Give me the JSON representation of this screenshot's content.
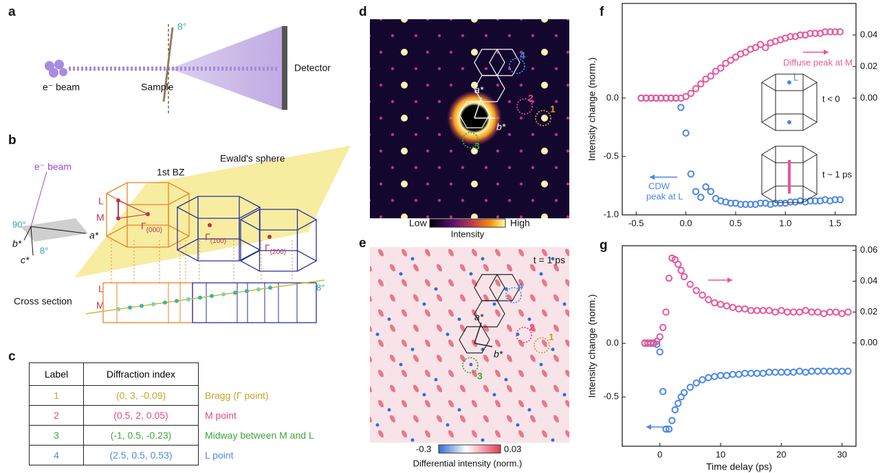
{
  "panel_labels": [
    "a",
    "b",
    "c",
    "d",
    "e",
    "f",
    "g"
  ],
  "a": {
    "beam": "e⁻ beam",
    "sample": "Sample",
    "angle": "8°",
    "detector": "Detector"
  },
  "b": {
    "beam": "e⁻ beam",
    "right_angle": "90°",
    "a_star": "a*",
    "b_star": "b*",
    "c_star": "c*",
    "tilt": "8°",
    "bz": "1st BZ",
    "ewald": "Ewald's sphere",
    "L": "L",
    "M": "M",
    "gammas": [
      {
        "main": "Γ",
        "sub": "(000)"
      },
      {
        "main": "Γ",
        "sub": "(100)"
      },
      {
        "main": "Γ",
        "sub": "(200)"
      }
    ],
    "cross_section": "Cross section",
    "cs_L": "L",
    "cs_M": "M",
    "cs_angle": "8°"
  },
  "c": {
    "header": [
      "Label",
      "Diffraction index"
    ],
    "rows": [
      {
        "label": "1",
        "index": "(0, 3, -0.09)",
        "description": "Bragg (Γ point)",
        "color": "#c9a227"
      },
      {
        "label": "2",
        "index": "(0.5, 2, 0.05)",
        "description": "M point",
        "color": "#e8468a"
      },
      {
        "label": "3",
        "index": "(-1, 0.5, -0.23)",
        "description": "Midway between M and L",
        "color": "#3aa63a"
      },
      {
        "label": "4",
        "index": "(2.5, 0.5, 0.53)",
        "description": "L point",
        "color": "#4d8ae0"
      }
    ]
  },
  "d": {
    "markers": [
      "1",
      "2",
      "3",
      "4"
    ],
    "a_star": "a*",
    "b_star": "b*",
    "colorbar_low": "Low",
    "colorbar_high": "High",
    "colorbar_title": "Intensity"
  },
  "e": {
    "time": "t = 1 ps",
    "markers": [
      "1",
      "2",
      "3",
      "4"
    ],
    "a_star": "a*",
    "b_star": "b*",
    "colorbar_low": "-0.3",
    "colorbar_high": "0.03",
    "colorbar_title": "Differential intensity (norm.)"
  },
  "chart_data": [
    {
      "type": "scatter",
      "ylabel": "Intensity change (norm.)",
      "x": [
        -0.45,
        -0.4,
        -0.35,
        -0.3,
        -0.25,
        -0.2,
        -0.15,
        -0.1,
        -0.05,
        0.0,
        0.05,
        0.1,
        0.15,
        0.2,
        0.25,
        0.3,
        0.35,
        0.4,
        0.45,
        0.5,
        0.55,
        0.6,
        0.65,
        0.7,
        0.75,
        0.8,
        0.85,
        0.9,
        0.95,
        1.0,
        1.05,
        1.1,
        1.15,
        1.2,
        1.25,
        1.3,
        1.35,
        1.4,
        1.45,
        1.5,
        1.55
      ],
      "series": [
        {
          "color": "#4a86e8",
          "axis": "y",
          "values": [
            0,
            0,
            0,
            0,
            0,
            0,
            0,
            0,
            -0.08,
            -0.3,
            -0.65,
            -0.8,
            -0.85,
            -0.76,
            -0.8,
            -0.86,
            -0.88,
            -0.89,
            -0.9,
            -0.9,
            -0.91,
            -0.91,
            -0.91,
            -0.91,
            -0.9,
            -0.9,
            -0.91,
            -0.9,
            -0.9,
            -0.9,
            -0.89,
            -0.89,
            -0.88,
            -0.89,
            -0.88,
            -0.88,
            -0.88,
            -0.87,
            -0.88,
            -0.87,
            -0.87
          ]
        },
        {
          "color": "#e8569a",
          "axis": "y2",
          "values": [
            0,
            0,
            0,
            0,
            0,
            0,
            0,
            0,
            0,
            0.001,
            0.003,
            0.006,
            0.009,
            0.012,
            0.014,
            0.017,
            0.019,
            0.022,
            0.024,
            0.026,
            0.028,
            0.029,
            0.031,
            0.032,
            0.034,
            0.032,
            0.035,
            0.036,
            0.037,
            0.038,
            0.039,
            0.039,
            0.04,
            0.04,
            0.041,
            0.041,
            0.041,
            0.042,
            0.042,
            0.042,
            0.042
          ]
        }
      ],
      "xlim": [
        -0.64,
        1.71
      ],
      "xticks": [
        -0.5,
        {
          "value": 0,
          "label": "0.0"
        },
        0.5,
        {
          "value": 1,
          "label": "1.0"
        },
        1.5
      ],
      "ylim": [
        -1.0,
        0.81
      ],
      "yticks": [
        {
          "value": 0,
          "label": "0.0"
        },
        -0.5,
        {
          "value": -1,
          "label": "-1.0"
        }
      ],
      "y2lim": [
        -0.074,
        0.06
      ],
      "y2ticks": [
        {
          "value": 0,
          "label": "0.00"
        },
        {
          "value": 0.02,
          "label": "0.02"
        },
        {
          "value": 0.04,
          "label": "0.04"
        }
      ],
      "annotations": [
        "Diffuse peak at M",
        "CDW",
        "peak at L",
        "t < 0",
        "t ~ 1 ps",
        "L"
      ]
    },
    {
      "type": "scatter",
      "ylabel": "Intensity change (norm.)",
      "xlabel": "Time delay (ps)",
      "x": [
        -2.5,
        -2,
        -1.5,
        -1,
        -0.5,
        0,
        0.5,
        1,
        1.5,
        2,
        2.5,
        3,
        3.5,
        4,
        5,
        6,
        7,
        8,
        9,
        10,
        11,
        12,
        13,
        14,
        15,
        16,
        17,
        18,
        19,
        20,
        21,
        22,
        23,
        24,
        25,
        26,
        27,
        28,
        29,
        30,
        31
      ],
      "series": [
        {
          "color": "#4a86e8",
          "axis": "y",
          "values": [
            0,
            0,
            0,
            0,
            -0.01,
            -0.08,
            -0.45,
            -0.8,
            -0.8,
            -0.72,
            -0.62,
            -0.56,
            -0.5,
            -0.46,
            -0.41,
            -0.37,
            -0.34,
            -0.32,
            -0.31,
            -0.3,
            -0.3,
            -0.29,
            -0.29,
            -0.28,
            -0.28,
            -0.28,
            -0.28,
            -0.27,
            -0.27,
            -0.27,
            -0.27,
            -0.27,
            -0.26,
            -0.27,
            -0.26,
            -0.26,
            -0.26,
            -0.26,
            -0.26,
            -0.26,
            -0.26
          ]
        },
        {
          "color": "#e8569a",
          "axis": "y2",
          "values": [
            0,
            0,
            0,
            0,
            0.001,
            0.004,
            0.01,
            0.02,
            0.042,
            0.055,
            0.054,
            0.051,
            0.047,
            0.043,
            0.038,
            0.034,
            0.031,
            0.028,
            0.026,
            0.025,
            0.024,
            0.023,
            0.022,
            0.022,
            0.021,
            0.021,
            0.021,
            0.021,
            0.02,
            0.021,
            0.02,
            0.02,
            0.02,
            0.021,
            0.02,
            0.02,
            0.019,
            0.02,
            0.02,
            0.019,
            0.02
          ]
        }
      ],
      "xlim": [
        -6.2,
        32.3
      ],
      "xticks": [
        0,
        10,
        20,
        30
      ],
      "ylim": [
        -0.96,
        0.91
      ],
      "yticks": [
        {
          "value": 0,
          "label": "0.0"
        },
        -0.5
      ],
      "y2lim": [
        -0.067,
        0.063
      ],
      "y2ticks": [
        {
          "value": 0,
          "label": "0.00"
        },
        {
          "value": 0.02,
          "label": "0.02"
        },
        {
          "value": 0.04,
          "label": "0.04"
        },
        {
          "value": 0.06,
          "label": "0.06"
        }
      ]
    }
  ]
}
